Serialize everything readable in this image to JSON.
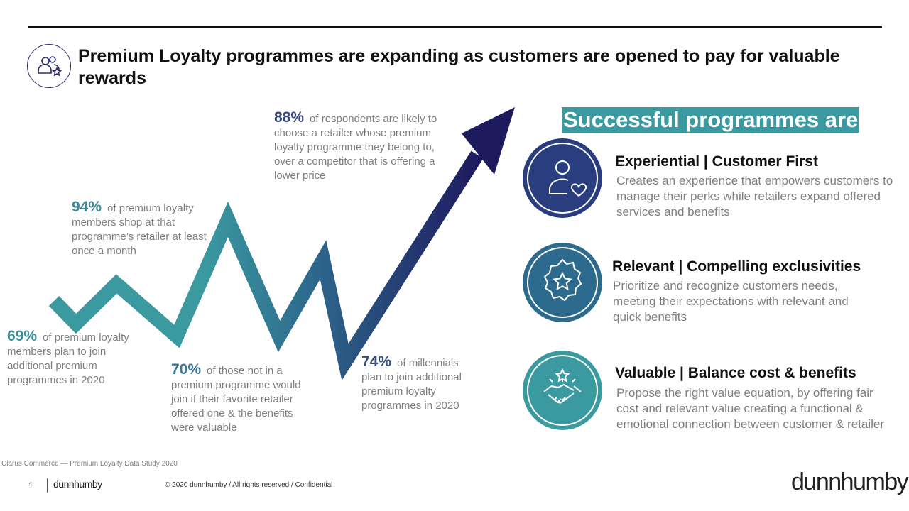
{
  "header": {
    "title": "Premium Loyalty programmes are expanding as customers are opened to pay for valuable rewards",
    "icon": "people-star-icon"
  },
  "stats": [
    {
      "percent": "69%",
      "text": "of premium loyalty members plan to join additional premium programmes in 2020"
    },
    {
      "percent": "94%",
      "text": "of premium loyalty members shop at that programme’s retailer at least once a month"
    },
    {
      "percent": "70%",
      "text": "of those not in a premium programme would join if their favorite retailer offered one & the benefits were valuable"
    },
    {
      "percent": "88%",
      "text": "of respondents are likely to choose a retailer whose premium loyalty programme they belong to, over a competitor that is offering a lower price"
    },
    {
      "percent": "74%",
      "text": "of millennials plan to join additional premium loyalty programmes in 2020"
    }
  ],
  "successful": {
    "title": "Successful programmes are",
    "items": [
      {
        "heading": "Experiential | Customer First",
        "description": "Creates an experience that empowers customers to manage their perks while retailers expand offered services and benefits",
        "icon": "person-heart-icon",
        "color": "#2a3d7e"
      },
      {
        "heading": "Relevant | Compelling exclusivities",
        "description": "Prioritize and recognize customers needs, meeting their expectations with relevant and quick benefits",
        "icon": "badge-star-icon",
        "color": "#2c6a8e"
      },
      {
        "heading": "Valuable | Balance cost & benefits",
        "description": "Propose the right value equation, by offering fair cost and relevant value creating a functional & emotional connection  between customer & retailer",
        "icon": "handshake-star-icon",
        "color": "#3a9aa0"
      }
    ]
  },
  "arrow_gradient": {
    "start": "#3a9aa0",
    "end": "#1e1a5e"
  },
  "footer": {
    "source": "Clarus Commerce — Premium Loyalty Data Study 2020",
    "page_number": "1",
    "logo_small": "dunnhumby",
    "copyright": "© 2020 dunnhumby / All rights reserved / Confidential",
    "brand": "dunnhumby"
  }
}
